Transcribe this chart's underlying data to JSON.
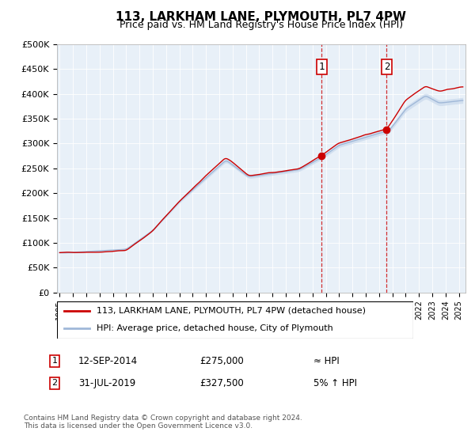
{
  "title": "113, LARKHAM LANE, PLYMOUTH, PL7 4PW",
  "subtitle": "Price paid vs. HM Land Registry's House Price Index (HPI)",
  "ylabel_ticks": [
    "£0",
    "£50K",
    "£100K",
    "£150K",
    "£200K",
    "£250K",
    "£300K",
    "£350K",
    "£400K",
    "£450K",
    "£500K"
  ],
  "ytick_values": [
    0,
    50000,
    100000,
    150000,
    200000,
    250000,
    300000,
    350000,
    400000,
    450000,
    500000
  ],
  "xlim_start": 1994.8,
  "xlim_end": 2025.5,
  "ylim": [
    0,
    500000
  ],
  "bg_color": "#e8f0f8",
  "hpi_color": "#a0b8d8",
  "hpi_fill_color": "#c8d8ec",
  "price_color": "#cc0000",
  "marker1_x": 2014.7,
  "marker1_y": 275000,
  "marker2_x": 2019.58,
  "marker2_y": 327500,
  "legend1": "113, LARKHAM LANE, PLYMOUTH, PL7 4PW (detached house)",
  "legend2": "HPI: Average price, detached house, City of Plymouth",
  "note1_label": "1",
  "note1_date": "12-SEP-2014",
  "note1_price": "£275,000",
  "note1_hpi": "≈ HPI",
  "note2_label": "2",
  "note2_date": "31-JUL-2019",
  "note2_price": "£327,500",
  "note2_hpi": "5% ↑ HPI",
  "footer": "Contains HM Land Registry data © Crown copyright and database right 2024.\nThis data is licensed under the Open Government Licence v3.0."
}
